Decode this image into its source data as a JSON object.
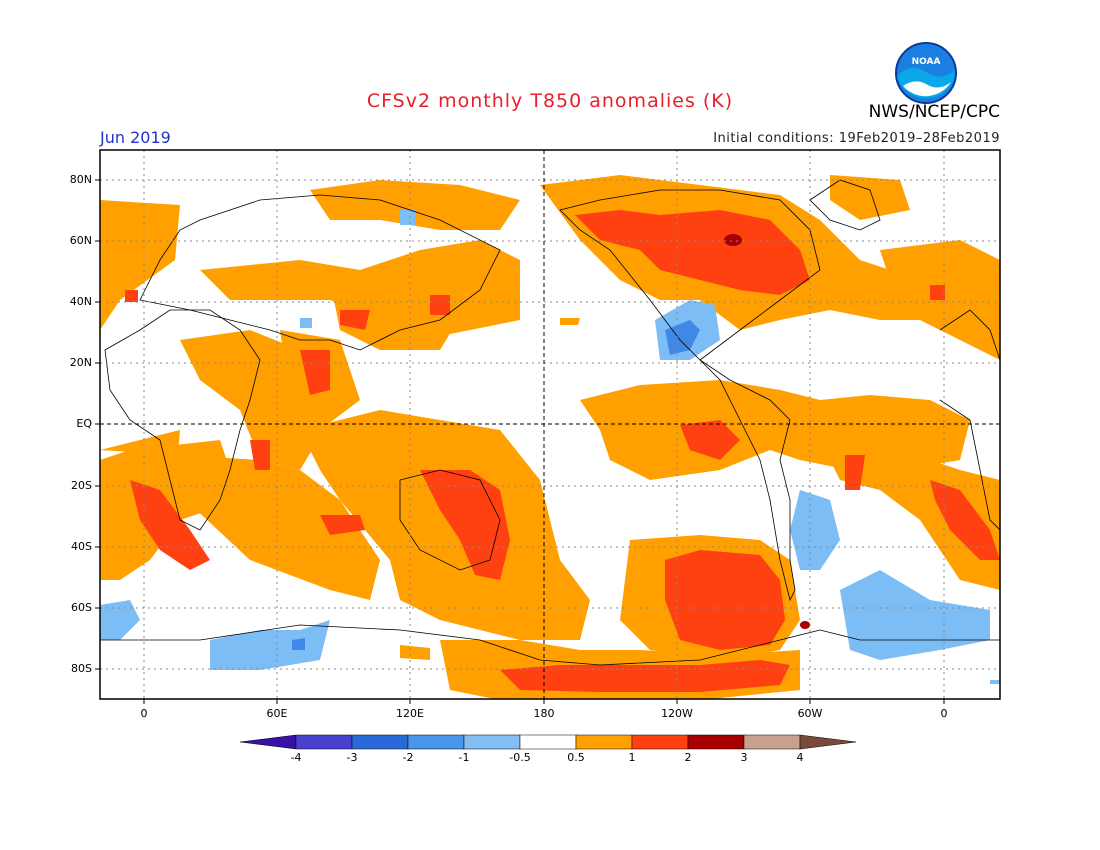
{
  "header": {
    "title": "CFSv2 monthly T850 anomalies (K)",
    "month": "Jun 2019",
    "initial_conditions": "Initial conditions: 19Feb2019–28Feb2019",
    "agency": "NWS/NCEP/CPC",
    "logo_text": "NOAA"
  },
  "colors": {
    "title": "#e8202a",
    "month": "#2233cc",
    "pos_05_1": "#ffa000",
    "pos_1_2": "#ff4010",
    "pos_2_3": "#a80000",
    "neg_05_1": "#7dbdf5",
    "neg_1_2": "#3f88e6"
  },
  "map": {
    "lat_labels": [
      "80N",
      "60N",
      "40N",
      "20N",
      "EQ",
      "20S",
      "40S",
      "60S",
      "80S"
    ],
    "lon_labels": [
      "0",
      "60E",
      "120E",
      "180",
      "120W",
      "60W",
      "0"
    ]
  },
  "colorbar": {
    "labels": [
      "-4",
      "-3",
      "-2",
      "-1",
      "-0.5",
      "0.5",
      "1",
      "2",
      "3",
      "4"
    ],
    "colors": [
      "#3a10a8",
      "#4a40d0",
      "#2a6ad8",
      "#4a96ea",
      "#82bef2",
      "#ffffff",
      "#ffa000",
      "#ff4010",
      "#a80000",
      "#c8a090",
      "#7a4a3a",
      "#5a3020"
    ]
  }
}
